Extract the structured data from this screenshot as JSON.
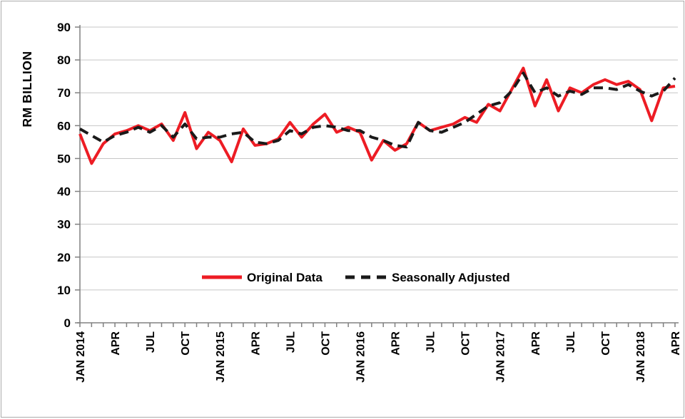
{
  "window": {
    "background": "#ffffff",
    "frame_border_color": "#ababab"
  },
  "colors": {
    "gridline": "#c6c6c6",
    "axis": "#808080",
    "text": "#000000",
    "plot_background": "#ffffff"
  },
  "chart_data": {
    "type": "line",
    "title": "",
    "ylabel": "RM BILLION",
    "xlabel": "",
    "ylim": [
      0,
      90
    ],
    "ytick_step": 10,
    "ytick_labels": [
      "0",
      "10",
      "20",
      "30",
      "40",
      "50",
      "60",
      "70",
      "80",
      "90"
    ],
    "grid": "horizontal",
    "x_unit": "month",
    "x_start": "JAN 2014",
    "x_end": "APR 2018",
    "x_minor_tick_every": 1,
    "x_label_every_n_months": 3,
    "x_tick_labels": [
      "JAN 2014",
      "APR",
      "JUL",
      "OCT",
      "JAN 2015",
      "APR",
      "JUL",
      "OCT",
      "JAN 2016",
      "APR",
      "JUL",
      "OCT",
      "JAN 2017",
      "APR",
      "JUL",
      "OCT",
      "JAN 2018",
      "APR"
    ],
    "legend_position": "inside-bottom-center",
    "series": [
      {
        "name": "Original Data",
        "line_style": "solid",
        "color": "#ed1c24",
        "stroke_width": 4,
        "values": [
          57.5,
          48.5,
          54.5,
          57.5,
          58.5,
          60,
          58.5,
          60.5,
          55.5,
          64,
          53,
          58,
          55.5,
          49,
          59,
          54,
          54.5,
          56,
          61,
          56.5,
          60.5,
          63.5,
          58,
          59.5,
          58,
          49.5,
          55.5,
          52.5,
          54.5,
          61,
          58.5,
          59.5,
          60.5,
          62.5,
          61,
          66.5,
          64.5,
          71,
          77.5,
          66,
          74,
          64.5,
          71.5,
          70,
          72.5,
          74,
          72.5,
          73.5,
          71,
          61.5,
          71.5,
          72
        ]
      },
      {
        "name": "Seasonally Adjusted",
        "line_style": "dashed",
        "color": "#1a1a1a",
        "stroke_width": 4,
        "dash_pattern": "13 8",
        "values": [
          59,
          57,
          55,
          57,
          58,
          59.5,
          58,
          60,
          56.5,
          60.5,
          56,
          56.5,
          56.5,
          57.5,
          58,
          55,
          54.5,
          55.5,
          58.5,
          57.5,
          59.5,
          60,
          59.5,
          58.5,
          58.5,
          56.5,
          55.5,
          54,
          53.5,
          61,
          58.5,
          58,
          59.5,
          61,
          63.5,
          66,
          67,
          70.5,
          76,
          70,
          71.5,
          69,
          70.5,
          69.5,
          71.5,
          71.5,
          71,
          72.5,
          70.5,
          69,
          70.5,
          74.5
        ]
      }
    ]
  }
}
